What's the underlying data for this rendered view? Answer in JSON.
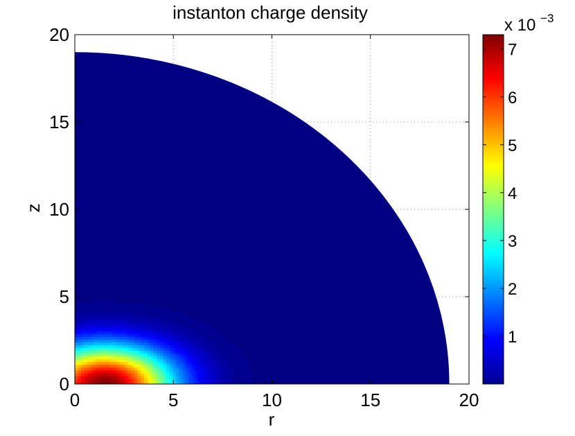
{
  "chart_data": {
    "type": "heatmap",
    "title": "instanton charge density",
    "xlabel": "r",
    "ylabel": "z",
    "xlim": [
      0,
      20
    ],
    "ylim": [
      0,
      20
    ],
    "xticks": [
      0,
      5,
      10,
      15,
      20
    ],
    "yticks": [
      0,
      5,
      10,
      15,
      20
    ],
    "xtick_labels": [
      "0",
      "5",
      "10",
      "15",
      "20"
    ],
    "ytick_labels": [
      "0",
      "5",
      "10",
      "15",
      "20"
    ],
    "grid": true,
    "domain": {
      "shape": "quarter-disk",
      "radius": 19
    },
    "density_peak": {
      "value": 0.0073,
      "r": 1.5,
      "z": 0
    },
    "colorbar": {
      "colormap": "jet",
      "range": [
        0,
        0.0073
      ],
      "ticks": [
        1,
        2,
        3,
        4,
        5,
        6,
        7
      ],
      "tick_labels": [
        "1",
        "2",
        "3",
        "4",
        "5",
        "6",
        "7"
      ],
      "multiplier_base": "x 10",
      "multiplier_exponent": "−3"
    }
  }
}
